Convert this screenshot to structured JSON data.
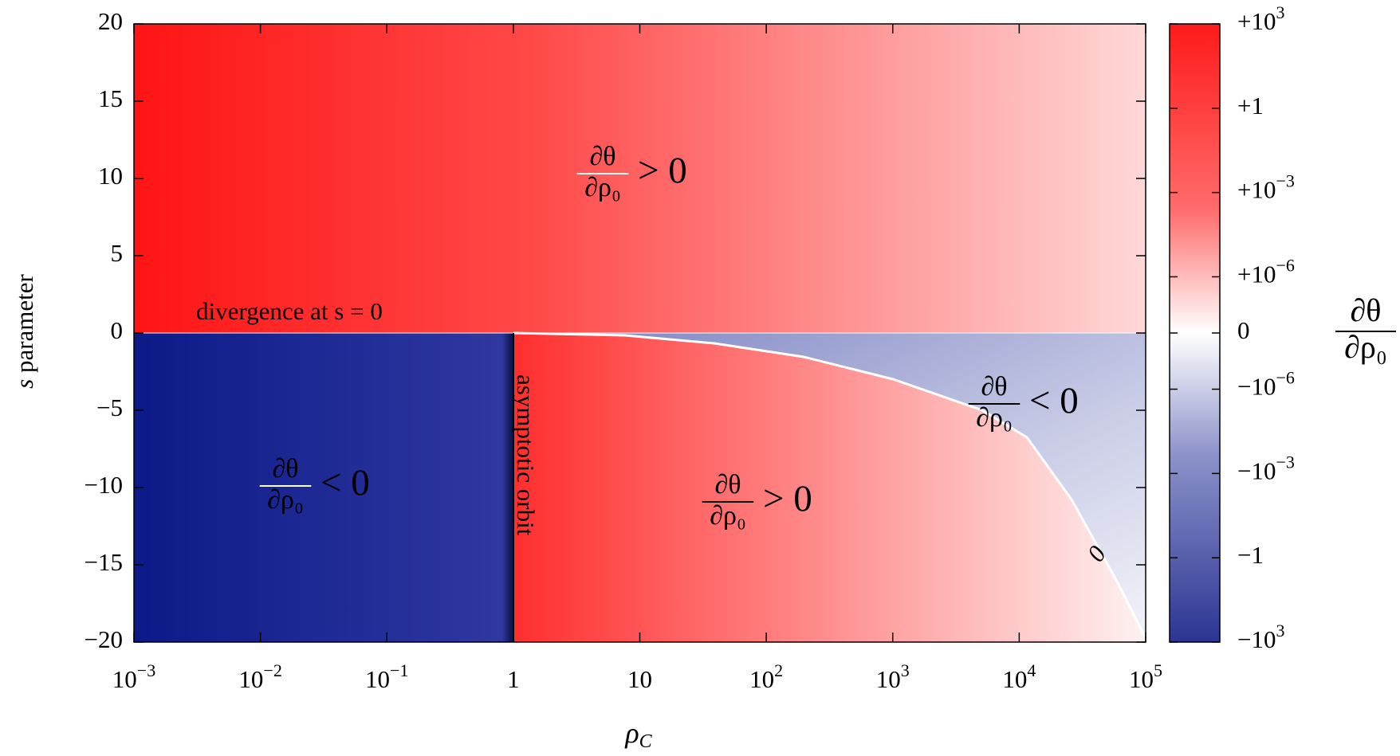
{
  "chart_data": {
    "type": "heatmap",
    "x_label": "ρ",
    "x_label_sub": "C",
    "y_label_var": "s",
    "y_label": "parameter",
    "xlim": [
      0.001,
      100000
    ],
    "xscale": "log",
    "xticks": [
      {
        "value": 0.001,
        "label": "10",
        "superscript": "−3"
      },
      {
        "value": 0.01,
        "label": "10",
        "superscript": "−2"
      },
      {
        "value": 0.1,
        "label": "10",
        "superscript": "−1"
      },
      1,
      10,
      {
        "value": 100,
        "label": "10",
        "superscript": "2"
      },
      {
        "value": 1000,
        "label": "10",
        "superscript": "3"
      },
      {
        "value": 10000,
        "label": "10",
        "superscript": "4"
      },
      {
        "value": 100000,
        "label": "10",
        "superscript": "5"
      }
    ],
    "ylim": [
      -20,
      20
    ],
    "yticks": [
      {
        "value": -20,
        "label": "−20"
      },
      {
        "value": -15,
        "label": "−15"
      },
      {
        "value": -10,
        "label": "−10"
      },
      {
        "value": -5,
        "label": "−5"
      },
      0,
      5,
      10,
      15,
      20
    ],
    "colorbar": {
      "numerator": "∂θ",
      "denominator": "∂ρ₀",
      "clim": [
        -1000,
        1000
      ],
      "scale": "symlog",
      "linthresh": 1e-08,
      "colors": [
        "#2b3592",
        "#ffffff",
        "#ff1a1a"
      ],
      "ticks": [
        {
          "value": 1000,
          "label": "+10",
          "superscript": "3"
        },
        {
          "value": 1,
          "label": "+1"
        },
        {
          "value": 0.001,
          "label": "+10",
          "superscript": "−3"
        },
        {
          "value": 1e-06,
          "label": "+10",
          "superscript": "−6"
        },
        0,
        {
          "value": -1e-06,
          "label": "−10",
          "superscript": "−6"
        },
        {
          "value": -0.001,
          "label": "−10",
          "superscript": "−3"
        },
        {
          "value": -1,
          "label": "−1"
        },
        {
          "value": -1000,
          "label": "−10",
          "superscript": "3"
        }
      ]
    },
    "annotations": [
      {
        "numerator": "∂θ",
        "denominator": "∂ρ₀",
        "relation": "> 0",
        "color": "#ffffff"
      },
      {
        "numerator": "∂θ",
        "denominator": "∂ρ₀",
        "relation": "< 0",
        "color": "#ffffff"
      },
      {
        "numerator": "∂θ",
        "denominator": "∂ρ₀",
        "relation": "> 0",
        "color": "#000000"
      },
      {
        "numerator": "∂θ",
        "denominator": "∂ρ₀",
        "relation": "< 0",
        "color": "#000000"
      }
    ],
    "divergence_label": "divergence at s = 0",
    "orbit_label": "asymptotic orbit",
    "contour_label": "0"
  }
}
